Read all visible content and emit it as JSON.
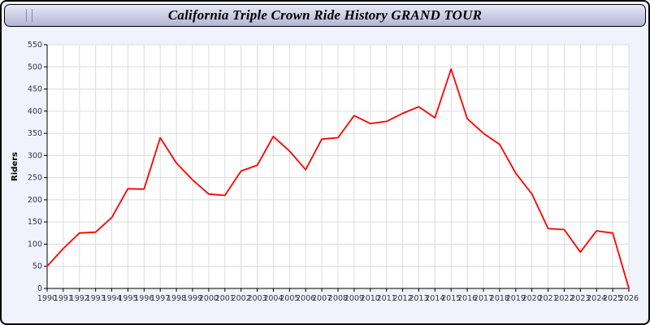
{
  "window": {
    "title": "California Triple Crown Ride History GRAND TOUR"
  },
  "chart_data": {
    "type": "line",
    "title": "California Triple Crown Ride History GRAND TOUR",
    "xlabel": "",
    "ylabel": "Riders",
    "ylim": [
      0,
      550
    ],
    "ytick_step": 50,
    "grid": true,
    "legend": "none",
    "line_color": "#ff0000",
    "categories": [
      "1990",
      "1991",
      "1992",
      "1993",
      "1994",
      "1995",
      "1996",
      "1997",
      "1998",
      "1999",
      "2000",
      "2001",
      "2002",
      "2003",
      "2004",
      "2005",
      "2006",
      "2007",
      "2008",
      "2009",
      "2010",
      "2011",
      "2012",
      "2013",
      "2014",
      "2015",
      "2016",
      "2017",
      "2018",
      "2019",
      "2020",
      "2021",
      "2022",
      "2023",
      "2024",
      "2025",
      "2026"
    ],
    "values": [
      50,
      90,
      125,
      127,
      160,
      225,
      224,
      340,
      283,
      245,
      213,
      210,
      265,
      278,
      343,
      310,
      268,
      337,
      340,
      390,
      372,
      377,
      395,
      410,
      385,
      495,
      383,
      350,
      325,
      260,
      213,
      135,
      133,
      82,
      130,
      125,
      0
    ]
  },
  "colors": {
    "page_bg": "#f2f2fc",
    "plot_bg": "#ffffff",
    "grid": "#dcdcdc",
    "axis": "#000000",
    "tick_text": "#333344",
    "line": "#ff0000"
  }
}
